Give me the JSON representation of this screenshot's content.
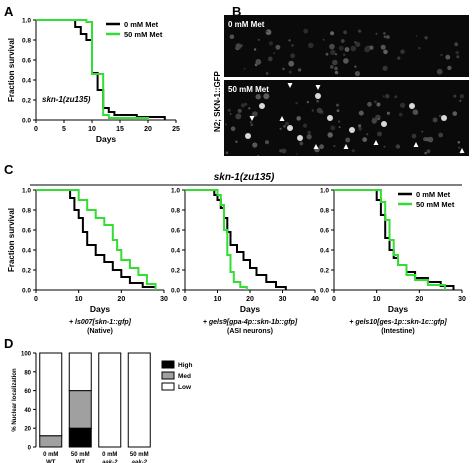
{
  "panels": {
    "A": {
      "letter": "A"
    },
    "B": {
      "letter": "B",
      "image_label_top": "0 mM Met",
      "image_label_bottom": "50 mM Met",
      "side_label": "N2; SKN-1::GFP"
    },
    "C": {
      "letter": "C",
      "strain_title": "skn-1(zu135)"
    },
    "D": {
      "letter": "D"
    }
  },
  "chart_data": [
    {
      "id": "A",
      "type": "line",
      "step": true,
      "xlabel": "Days",
      "ylabel": "Fraction survival",
      "xlim": [
        0,
        25
      ],
      "ylim": [
        0,
        1.0
      ],
      "xticks": [
        0,
        5,
        10,
        15,
        20,
        25
      ],
      "yticks": [
        0.0,
        0.2,
        0.4,
        0.6,
        0.8,
        1.0
      ],
      "annotation": "skn-1(zu135)",
      "legend": "top-right",
      "series": [
        {
          "name": "0 mM Met",
          "color": "#000000",
          "points": [
            [
              0,
              1
            ],
            [
              7,
              1
            ],
            [
              7,
              0.93
            ],
            [
              8,
              0.93
            ],
            [
              8,
              0.86
            ],
            [
              9,
              0.86
            ],
            [
              9,
              0.8
            ],
            [
              10,
              0.8
            ],
            [
              10,
              0.47
            ],
            [
              11,
              0.47
            ],
            [
              11,
              0.3
            ],
            [
              12,
              0.3
            ],
            [
              12,
              0.12
            ],
            [
              13,
              0.12
            ],
            [
              13,
              0.08
            ],
            [
              14,
              0.08
            ],
            [
              14,
              0.05
            ],
            [
              18,
              0.05
            ],
            [
              18,
              0.03
            ],
            [
              23,
              0.03
            ],
            [
              23,
              0
            ]
          ]
        },
        {
          "name": "50 mM Met",
          "color": "#33dd33",
          "points": [
            [
              0,
              1
            ],
            [
              9,
              1
            ],
            [
              9,
              0.98
            ],
            [
              10,
              0.98
            ],
            [
              10,
              0.46
            ],
            [
              12,
              0.46
            ],
            [
              12,
              0.05
            ],
            [
              13,
              0.05
            ],
            [
              13,
              0.02
            ],
            [
              20,
              0.02
            ],
            [
              20,
              0
            ]
          ]
        }
      ]
    },
    {
      "id": "C1",
      "type": "line",
      "step": true,
      "xlabel": "Days",
      "ylabel": "Fraction survival",
      "xlim": [
        0,
        30
      ],
      "ylim": [
        0,
        1.0
      ],
      "xticks": [
        0,
        10,
        20,
        30
      ],
      "yticks": [
        0.0,
        0.2,
        0.4,
        0.6,
        0.8,
        1.0
      ],
      "caption_line1": "+ ls007[skn-1::gfp]",
      "caption_line2": "(Native)",
      "series": [
        {
          "name": "0 mM Met",
          "color": "#000000",
          "points": [
            [
              0,
              1
            ],
            [
              8,
              1
            ],
            [
              8,
              0.92
            ],
            [
              9,
              0.92
            ],
            [
              9,
              0.8
            ],
            [
              10,
              0.8
            ],
            [
              10,
              0.72
            ],
            [
              11,
              0.72
            ],
            [
              11,
              0.58
            ],
            [
              12,
              0.58
            ],
            [
              12,
              0.45
            ],
            [
              14,
              0.45
            ],
            [
              14,
              0.35
            ],
            [
              16,
              0.35
            ],
            [
              16,
              0.28
            ],
            [
              18,
              0.28
            ],
            [
              18,
              0.2
            ],
            [
              20,
              0.2
            ],
            [
              20,
              0.13
            ],
            [
              22,
              0.13
            ],
            [
              22,
              0.07
            ],
            [
              25,
              0.07
            ],
            [
              25,
              0.03
            ],
            [
              28,
              0.03
            ],
            [
              28,
              0
            ]
          ]
        },
        {
          "name": "50 mM Met",
          "color": "#33dd33",
          "points": [
            [
              0,
              1
            ],
            [
              10,
              1
            ],
            [
              10,
              0.9
            ],
            [
              12,
              0.9
            ],
            [
              12,
              0.8
            ],
            [
              14,
              0.8
            ],
            [
              14,
              0.72
            ],
            [
              16,
              0.72
            ],
            [
              16,
              0.65
            ],
            [
              18,
              0.65
            ],
            [
              18,
              0.5
            ],
            [
              19,
              0.5
            ],
            [
              19,
              0.4
            ],
            [
              20,
              0.4
            ],
            [
              20,
              0.3
            ],
            [
              22,
              0.3
            ],
            [
              22,
              0.22
            ],
            [
              24,
              0.22
            ],
            [
              24,
              0.15
            ],
            [
              26,
              0.15
            ],
            [
              26,
              0.06
            ],
            [
              28,
              0.06
            ],
            [
              28,
              0
            ]
          ]
        }
      ]
    },
    {
      "id": "C2",
      "type": "line",
      "step": true,
      "xlabel": "Days",
      "xlim": [
        0,
        40
      ],
      "ylim": [
        0,
        1.0
      ],
      "xticks": [
        0,
        10,
        20,
        30,
        40
      ],
      "yticks": [
        0.0,
        0.2,
        0.4,
        0.6,
        0.8,
        1.0
      ],
      "caption_line1": "+ gels9[gpa-4p::skn-1b::gfp]",
      "caption_line2": "(ASI neurons)",
      "series": [
        {
          "name": "0 mM Met",
          "color": "#000000",
          "points": [
            [
              0,
              1
            ],
            [
              9,
              1
            ],
            [
              9,
              0.95
            ],
            [
              10,
              0.95
            ],
            [
              10,
              0.9
            ],
            [
              11,
              0.9
            ],
            [
              11,
              0.82
            ],
            [
              12,
              0.82
            ],
            [
              12,
              0.72
            ],
            [
              13,
              0.72
            ],
            [
              13,
              0.58
            ],
            [
              14,
              0.58
            ],
            [
              14,
              0.45
            ],
            [
              16,
              0.45
            ],
            [
              16,
              0.38
            ],
            [
              18,
              0.38
            ],
            [
              18,
              0.3
            ],
            [
              20,
              0.3
            ],
            [
              20,
              0.22
            ],
            [
              22,
              0.22
            ],
            [
              22,
              0.15
            ],
            [
              25,
              0.15
            ],
            [
              25,
              0.08
            ],
            [
              28,
              0.08
            ],
            [
              28,
              0.03
            ],
            [
              31,
              0.03
            ],
            [
              31,
              0
            ]
          ]
        },
        {
          "name": "50 mM Met",
          "color": "#33dd33",
          "points": [
            [
              0,
              1
            ],
            [
              10,
              1
            ],
            [
              10,
              0.95
            ],
            [
              11,
              0.95
            ],
            [
              11,
              0.85
            ],
            [
              12,
              0.85
            ],
            [
              12,
              0.6
            ],
            [
              13,
              0.6
            ],
            [
              13,
              0.35
            ],
            [
              14,
              0.35
            ],
            [
              14,
              0.18
            ],
            [
              15,
              0.18
            ],
            [
              15,
              0.08
            ],
            [
              17,
              0.08
            ],
            [
              17,
              0.03
            ],
            [
              19,
              0.03
            ],
            [
              19,
              0
            ]
          ]
        }
      ]
    },
    {
      "id": "C3",
      "type": "line",
      "step": true,
      "xlabel": "Days",
      "xlim": [
        0,
        30
      ],
      "ylim": [
        0,
        1.0
      ],
      "xticks": [
        0,
        10,
        20,
        30
      ],
      "yticks": [
        0.0,
        0.2,
        0.4,
        0.6,
        0.8,
        1.0
      ],
      "caption_line1": "+ gels10[ges-1p::skn-1c::gfp]",
      "caption_line2": "(Intestine)",
      "legend": "top-right",
      "series": [
        {
          "name": "0 mM Met",
          "color": "#000000",
          "points": [
            [
              0,
              1
            ],
            [
              10,
              1
            ],
            [
              10,
              0.9
            ],
            [
              11,
              0.9
            ],
            [
              11,
              0.75
            ],
            [
              12,
              0.75
            ],
            [
              12,
              0.52
            ],
            [
              13,
              0.52
            ],
            [
              13,
              0.4
            ],
            [
              14,
              0.4
            ],
            [
              14,
              0.32
            ],
            [
              15,
              0.32
            ],
            [
              15,
              0.25
            ],
            [
              17,
              0.25
            ],
            [
              17,
              0.18
            ],
            [
              19,
              0.18
            ],
            [
              19,
              0.12
            ],
            [
              22,
              0.12
            ],
            [
              22,
              0.08
            ],
            [
              25,
              0.08
            ],
            [
              25,
              0.04
            ],
            [
              28,
              0.04
            ],
            [
              28,
              0
            ]
          ]
        },
        {
          "name": "50 mM Met",
          "color": "#33dd33",
          "points": [
            [
              0,
              1
            ],
            [
              11,
              1
            ],
            [
              11,
              0.88
            ],
            [
              12,
              0.88
            ],
            [
              12,
              0.7
            ],
            [
              13,
              0.7
            ],
            [
              13,
              0.5
            ],
            [
              14,
              0.5
            ],
            [
              14,
              0.35
            ],
            [
              15,
              0.35
            ],
            [
              15,
              0.25
            ],
            [
              17,
              0.25
            ],
            [
              17,
              0.15
            ],
            [
              19,
              0.15
            ],
            [
              19,
              0.1
            ],
            [
              22,
              0.1
            ],
            [
              22,
              0.05
            ],
            [
              26,
              0.05
            ],
            [
              26,
              0
            ]
          ]
        }
      ]
    },
    {
      "id": "D",
      "type": "bar",
      "stacked": true,
      "ylabel": "% Nuclear localization",
      "ylim": [
        0,
        100
      ],
      "yticks": [
        0,
        20,
        40,
        60,
        80,
        100
      ],
      "categories": [
        [
          "0 mM",
          "WT"
        ],
        [
          "50 mM",
          "WT"
        ],
        [
          "0 mM",
          "aak-2"
        ],
        [
          "50 mM",
          "aak-2"
        ]
      ],
      "legend": "top-right",
      "series": [
        {
          "name": "High",
          "color": "#000000",
          "values": [
            0,
            20,
            0,
            0
          ]
        },
        {
          "name": "Med",
          "color": "#a0a0a0",
          "values": [
            12,
            40,
            0,
            0
          ]
        },
        {
          "name": "Low",
          "color": "#ffffff",
          "values": [
            88,
            40,
            100,
            100
          ]
        }
      ]
    }
  ]
}
